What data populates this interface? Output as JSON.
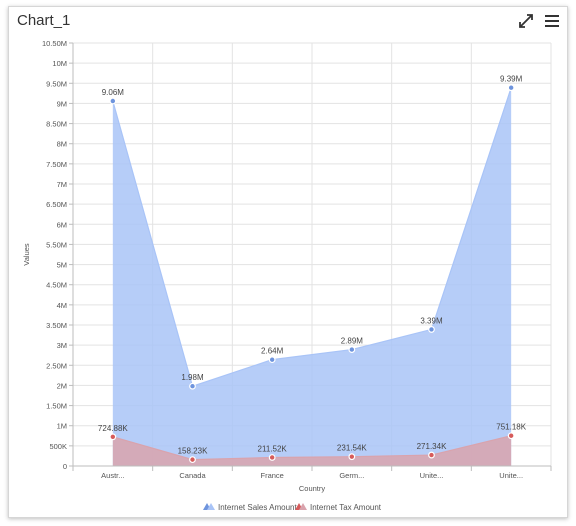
{
  "header": {
    "title": "Chart_1",
    "expand_icon": "expand-icon",
    "menu_icon": "hamburger-menu-icon"
  },
  "chart_data": {
    "type": "area",
    "xlabel": "Country",
    "ylabel": "Values",
    "ylim": [
      0,
      10500000
    ],
    "ytick_step": 500000,
    "ytick_labels": [
      "0",
      "500K",
      "1M",
      "1.50M",
      "2M",
      "2.50M",
      "3M",
      "3.50M",
      "4M",
      "4.50M",
      "5M",
      "5.50M",
      "6M",
      "6.50M",
      "7M",
      "7.50M",
      "8M",
      "8.50M",
      "9M",
      "9.50M",
      "10M",
      "10.50M"
    ],
    "categories": [
      "Austr...",
      "Canada",
      "France",
      "Germ...",
      "Unite...",
      "Unite..."
    ],
    "series": [
      {
        "name": "Internet Sales Amount",
        "color": "#a9c4f7",
        "marker_color": "#6e94dd",
        "values": [
          9060000,
          1980000,
          2640000,
          2890000,
          3390000,
          9390000
        ],
        "labels": [
          "9.06M",
          "1.98M",
          "2.64M",
          "2.89M",
          "3.39M",
          "9.39M"
        ]
      },
      {
        "name": "Internet Tax Amount",
        "color": "#d9a3ad",
        "marker_color": "#d65b5b",
        "values": [
          724880,
          158230,
          211520,
          231540,
          271340,
          751180
        ],
        "labels": [
          "724.88K",
          "158.23K",
          "211.52K",
          "231.54K",
          "271.34K",
          "751.18K"
        ]
      }
    ],
    "grid": true,
    "legend_position": "bottom"
  }
}
